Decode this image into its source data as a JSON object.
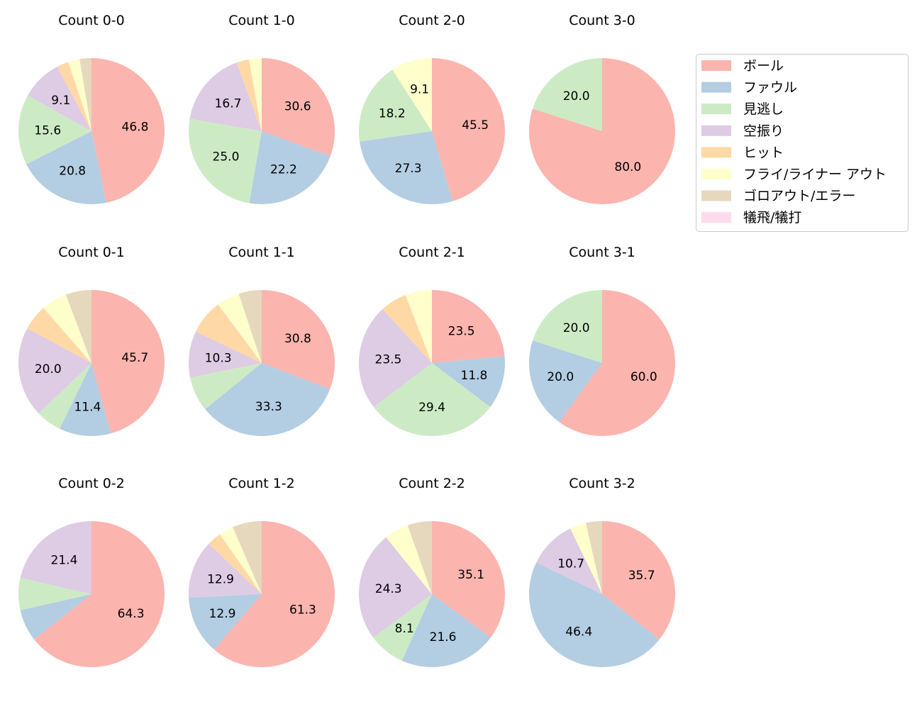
{
  "chart_data": {
    "type": "pie",
    "start_angle": 90,
    "direction": "clockwise",
    "label_threshold_percent": 8,
    "legend": {
      "placement": "top-right",
      "entries": [
        "ボール",
        "ファウル",
        "見逃し",
        "空振り",
        "ヒット",
        "フライ/ライナー アウト",
        "ゴロアウト/エラー",
        "犠飛/犠打"
      ]
    },
    "colors": [
      "#fbb4ae",
      "#b3cde3",
      "#ccebc5",
      "#decbe4",
      "#fed9a6",
      "#ffffcc",
      "#e5d8bd",
      "#fddaec"
    ],
    "charts": [
      {
        "title": "Count 0-0",
        "values": [
          46.8,
          20.8,
          15.6,
          9.1,
          2.6,
          2.6,
          2.6,
          0
        ]
      },
      {
        "title": "Count 1-0",
        "values": [
          30.6,
          22.2,
          25.0,
          16.7,
          2.8,
          2.8,
          0,
          0
        ]
      },
      {
        "title": "Count 2-0",
        "values": [
          45.5,
          27.3,
          18.2,
          0,
          0,
          9.1,
          0,
          0
        ]
      },
      {
        "title": "Count 3-0",
        "values": [
          80.0,
          0,
          20.0,
          0,
          0,
          0,
          0,
          0
        ]
      },
      {
        "title": "Count 0-1",
        "values": [
          45.7,
          11.4,
          5.7,
          20.0,
          5.7,
          5.7,
          5.7,
          0
        ]
      },
      {
        "title": "Count 1-1",
        "values": [
          30.8,
          33.3,
          7.7,
          10.3,
          7.7,
          5.1,
          5.1,
          0
        ]
      },
      {
        "title": "Count 2-1",
        "values": [
          23.5,
          11.8,
          29.4,
          23.5,
          5.9,
          5.9,
          0,
          0
        ]
      },
      {
        "title": "Count 3-1",
        "values": [
          60.0,
          20.0,
          20.0,
          0,
          0,
          0,
          0,
          0
        ]
      },
      {
        "title": "Count 0-2",
        "values": [
          64.3,
          7.1,
          7.1,
          21.4,
          0,
          0,
          0,
          0
        ]
      },
      {
        "title": "Count 1-2",
        "values": [
          61.3,
          12.9,
          0,
          12.9,
          3.2,
          3.2,
          6.5,
          0
        ]
      },
      {
        "title": "Count 2-2",
        "values": [
          35.1,
          21.6,
          8.1,
          24.3,
          0,
          5.4,
          5.4,
          0
        ]
      },
      {
        "title": "Count 3-2",
        "values": [
          35.7,
          46.4,
          0,
          10.7,
          0,
          3.6,
          3.6,
          0
        ]
      }
    ]
  }
}
